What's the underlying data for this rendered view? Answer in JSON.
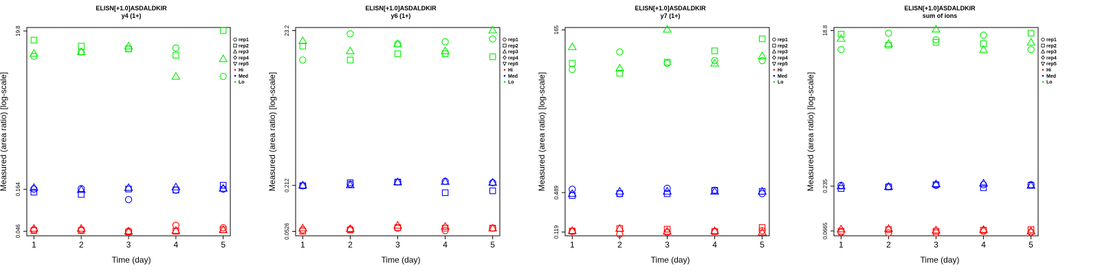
{
  "colors": {
    "Hi": "#ff0000",
    "Med": "#0000ff",
    "Lo": "#00ee00",
    "axis": "#000000"
  },
  "legend": {
    "reps": [
      "rep1",
      "rep2",
      "rep3",
      "rep4",
      "rep5"
    ],
    "groups": [
      "Hi",
      "Med",
      "Lo"
    ],
    "rep_markers": [
      "circle",
      "square",
      "triangle",
      "diamond",
      "triangle-down"
    ]
  },
  "chart_data": [
    {
      "type": "scatter",
      "title": "ELISN[+1.0]ASDALDKIR",
      "subtitle": "y4 (1+)",
      "xlabel": "Time (day)",
      "ylabel": "Measured (area ratio) [log-scale]",
      "x_ticks": [
        1,
        2,
        3,
        4,
        5
      ],
      "y_tick_labels": [
        "0.046",
        "0.164",
        "19.8"
      ],
      "y_scale": "log",
      "ylim": [
        0.04,
        22
      ],
      "xlim": [
        0.85,
        5.15
      ],
      "series": [
        {
          "group": "Lo",
          "rep": "rep1",
          "marker": "circle",
          "points": [
            [
              1,
              9.2
            ],
            [
              2,
              10.5
            ],
            [
              3,
              11.5
            ],
            [
              4,
              11.8
            ],
            [
              5,
              5.0
            ]
          ]
        },
        {
          "group": "Lo",
          "rep": "rep2",
          "marker": "square",
          "points": [
            [
              1,
              15.0
            ],
            [
              2,
              12.5
            ],
            [
              3,
              11.5
            ],
            [
              4,
              9.5
            ],
            [
              5,
              20.0
            ]
          ]
        },
        {
          "group": "Lo",
          "rep": "rep3",
          "marker": "triangle",
          "points": [
            [
              1,
              10.0
            ],
            [
              2,
              10.5
            ],
            [
              3,
              12.5
            ],
            [
              4,
              5.0
            ],
            [
              5,
              8.5
            ]
          ]
        },
        {
          "group": "Med",
          "rep": "rep1",
          "marker": "circle",
          "points": [
            [
              1,
              0.165
            ],
            [
              2,
              0.167
            ],
            [
              3,
              0.12
            ],
            [
              4,
              0.16
            ],
            [
              5,
              0.165
            ]
          ]
        },
        {
          "group": "Med",
          "rep": "rep2",
          "marker": "square",
          "points": [
            [
              1,
              0.15
            ],
            [
              2,
              0.14
            ],
            [
              3,
              0.165
            ],
            [
              4,
              0.16
            ],
            [
              5,
              0.185
            ]
          ]
        },
        {
          "group": "Med",
          "rep": "rep3",
          "marker": "triangle",
          "points": [
            [
              1,
              0.172
            ],
            [
              2,
              0.162
            ],
            [
              3,
              0.172
            ],
            [
              4,
              0.175
            ],
            [
              5,
              0.168
            ]
          ]
        },
        {
          "group": "Hi",
          "rep": "rep1",
          "marker": "circle",
          "points": [
            [
              1,
              0.048
            ],
            [
              2,
              0.048
            ],
            [
              3,
              0.046
            ],
            [
              4,
              0.055
            ],
            [
              5,
              0.051
            ]
          ]
        },
        {
          "group": "Hi",
          "rep": "rep2",
          "marker": "square",
          "points": [
            [
              1,
              0.047
            ],
            [
              2,
              0.047
            ],
            [
              3,
              0.045
            ],
            [
              4,
              0.046
            ],
            [
              5,
              0.048
            ]
          ]
        },
        {
          "group": "Hi",
          "rep": "rep3",
          "marker": "triangle",
          "points": [
            [
              1,
              0.05
            ],
            [
              2,
              0.05
            ],
            [
              3,
              0.046
            ],
            [
              4,
              0.047
            ],
            [
              5,
              0.048
            ]
          ]
        }
      ]
    },
    {
      "type": "scatter",
      "title": "ELISN[+1.0]ASDALDKIR",
      "subtitle": "y6 (1+)",
      "xlabel": "Time (day)",
      "ylabel": "Measured (area ratio) [log-scale]",
      "x_ticks": [
        1,
        2,
        3,
        4,
        5
      ],
      "y_tick_labels": [
        "0.0526",
        "0.212",
        "23.2"
      ],
      "y_scale": "log",
      "ylim": [
        0.046,
        25.5
      ],
      "xlim": [
        0.85,
        5.15
      ],
      "series": [
        {
          "group": "Lo",
          "rep": "rep1",
          "marker": "circle",
          "points": [
            [
              1,
              9.5
            ],
            [
              2,
              21.0
            ],
            [
              3,
              15.5
            ],
            [
              4,
              16.5
            ],
            [
              5,
              18.0
            ]
          ]
        },
        {
          "group": "Lo",
          "rep": "rep2",
          "marker": "square",
          "points": [
            [
              1,
              14.5
            ],
            [
              2,
              9.5
            ],
            [
              3,
              11.5
            ],
            [
              4,
              11.5
            ],
            [
              5,
              10.5
            ]
          ]
        },
        {
          "group": "Lo",
          "rep": "rep3",
          "marker": "triangle",
          "points": [
            [
              1,
              17.0
            ],
            [
              2,
              12.5
            ],
            [
              3,
              15.5
            ],
            [
              4,
              12.5
            ],
            [
              5,
              23.5
            ]
          ]
        },
        {
          "group": "Med",
          "rep": "rep1",
          "marker": "circle",
          "points": [
            [
              1,
              0.21
            ],
            [
              2,
              0.22
            ],
            [
              3,
              0.235
            ],
            [
              4,
              0.24
            ],
            [
              5,
              0.23
            ]
          ]
        },
        {
          "group": "Med",
          "rep": "rep2",
          "marker": "square",
          "points": [
            [
              1,
              0.21
            ],
            [
              2,
              0.23
            ],
            [
              3,
              0.235
            ],
            [
              4,
              0.17
            ],
            [
              5,
              0.18
            ]
          ]
        },
        {
          "group": "Med",
          "rep": "rep3",
          "marker": "triangle",
          "points": [
            [
              1,
              0.213
            ],
            [
              2,
              0.215
            ],
            [
              3,
              0.235
            ],
            [
              4,
              0.238
            ],
            [
              5,
              0.232
            ]
          ]
        },
        {
          "group": "Hi",
          "rep": "rep1",
          "marker": "circle",
          "points": [
            [
              1,
              0.055
            ],
            [
              2,
              0.056
            ],
            [
              3,
              0.058
            ],
            [
              4,
              0.054
            ],
            [
              5,
              0.058
            ]
          ]
        },
        {
          "group": "Hi",
          "rep": "rep2",
          "marker": "square",
          "points": [
            [
              1,
              0.053
            ],
            [
              2,
              0.055
            ],
            [
              3,
              0.059
            ],
            [
              4,
              0.058
            ],
            [
              5,
              0.058
            ]
          ]
        },
        {
          "group": "Hi",
          "rep": "rep3",
          "marker": "triangle",
          "points": [
            [
              1,
              0.058
            ],
            [
              2,
              0.057
            ],
            [
              3,
              0.063
            ],
            [
              4,
              0.061
            ],
            [
              5,
              0.058
            ]
          ]
        }
      ]
    },
    {
      "type": "scatter",
      "title": "ELISN[+1.0]ASDALDKIR",
      "subtitle": "y7 (1+)",
      "xlabel": "Time (day)",
      "ylabel": "Measured (area ratio) [log-scale]",
      "x_ticks": [
        1,
        2,
        3,
        4,
        5
      ],
      "y_tick_labels": [
        "0.119",
        "0.489",
        "165"
      ],
      "y_scale": "log",
      "ylim": [
        0.104,
        180
      ],
      "xlim": [
        0.85,
        5.15
      ],
      "series": [
        {
          "group": "Lo",
          "rep": "rep1",
          "marker": "circle",
          "points": [
            [
              1,
              40.0
            ],
            [
              2,
              75.0
            ],
            [
              3,
              50.0
            ],
            [
              4,
              55.0
            ],
            [
              5,
              55.0
            ]
          ]
        },
        {
          "group": "Lo",
          "rep": "rep2",
          "marker": "square",
          "points": [
            [
              1,
              50.0
            ],
            [
              2,
              35.0
            ],
            [
              3,
              52.0
            ],
            [
              4,
              78.0
            ],
            [
              5,
              120.0
            ]
          ]
        },
        {
          "group": "Lo",
          "rep": "rep3",
          "marker": "triangle",
          "points": [
            [
              1,
              90.0
            ],
            [
              2,
              42.0
            ],
            [
              3,
              168.0
            ],
            [
              4,
              50.0
            ],
            [
              5,
              65.0
            ]
          ]
        },
        {
          "group": "Med",
          "rep": "rep1",
          "marker": "circle",
          "points": [
            [
              1,
              0.55
            ],
            [
              2,
              0.47
            ],
            [
              3,
              0.57
            ],
            [
              4,
              0.53
            ],
            [
              5,
              0.47
            ]
          ]
        },
        {
          "group": "Med",
          "rep": "rep2",
          "marker": "square",
          "points": [
            [
              1,
              0.44
            ],
            [
              2,
              0.47
            ],
            [
              3,
              0.47
            ],
            [
              4,
              0.53
            ],
            [
              5,
              0.51
            ]
          ]
        },
        {
          "group": "Med",
          "rep": "rep3",
          "marker": "triangle",
          "points": [
            [
              1,
              0.47
            ],
            [
              2,
              0.51
            ],
            [
              3,
              0.51
            ],
            [
              4,
              0.51
            ],
            [
              5,
              0.51
            ]
          ]
        },
        {
          "group": "Hi",
          "rep": "rep1",
          "marker": "circle",
          "points": [
            [
              1,
              0.122
            ],
            [
              2,
              0.11
            ],
            [
              3,
              0.118
            ],
            [
              4,
              0.122
            ],
            [
              5,
              0.125
            ]
          ]
        },
        {
          "group": "Hi",
          "rep": "rep2",
          "marker": "square",
          "points": [
            [
              1,
              0.123
            ],
            [
              2,
              0.135
            ],
            [
              3,
              0.132
            ],
            [
              4,
              0.121
            ],
            [
              5,
              0.14
            ]
          ]
        },
        {
          "group": "Hi",
          "rep": "rep3",
          "marker": "triangle",
          "points": [
            [
              1,
              0.125
            ],
            [
              2,
              0.135
            ],
            [
              3,
              0.122
            ],
            [
              4,
              0.124
            ],
            [
              5,
              0.118
            ]
          ]
        }
      ]
    },
    {
      "type": "scatter",
      "title": "ELISN[+1.0]ASDALDKIR",
      "subtitle": "sum of ions",
      "xlabel": "Time (day)",
      "ylabel": "Measured (area ratio) [log-scale]",
      "x_ticks": [
        1,
        2,
        3,
        4,
        5
      ],
      "y_tick_labels": [
        "0.0665",
        "0.235",
        "18.8"
      ],
      "y_scale": "log",
      "ylim": [
        0.058,
        20.5
      ],
      "xlim": [
        0.85,
        5.15
      ],
      "series": [
        {
          "group": "Lo",
          "rep": "rep1",
          "marker": "circle",
          "points": [
            [
              1,
              11.0
            ],
            [
              2,
              17.5
            ],
            [
              3,
              14.5
            ],
            [
              4,
              16.5
            ],
            [
              5,
              11.0
            ]
          ]
        },
        {
          "group": "Lo",
          "rep": "rep2",
          "marker": "square",
          "points": [
            [
              1,
              17.0
            ],
            [
              2,
              12.5
            ],
            [
              3,
              13.5
            ],
            [
              4,
              13.0
            ],
            [
              5,
              17.5
            ]
          ]
        },
        {
          "group": "Lo",
          "rep": "rep3",
          "marker": "triangle",
          "points": [
            [
              1,
              15.0
            ],
            [
              2,
              13.0
            ],
            [
              3,
              19.5
            ],
            [
              4,
              11.0
            ],
            [
              5,
              13.5
            ]
          ]
        },
        {
          "group": "Med",
          "rep": "rep1",
          "marker": "circle",
          "points": [
            [
              1,
              0.24
            ],
            [
              2,
              0.232
            ],
            [
              3,
              0.24
            ],
            [
              4,
              0.245
            ],
            [
              5,
              0.245
            ]
          ]
        },
        {
          "group": "Med",
          "rep": "rep2",
          "marker": "square",
          "points": [
            [
              1,
              0.22
            ],
            [
              2,
              0.23
            ],
            [
              3,
              0.245
            ],
            [
              4,
              0.225
            ],
            [
              5,
              0.24
            ]
          ]
        },
        {
          "group": "Med",
          "rep": "rep3",
          "marker": "triangle",
          "points": [
            [
              1,
              0.235
            ],
            [
              2,
              0.232
            ],
            [
              3,
              0.25
            ],
            [
              4,
              0.255
            ],
            [
              5,
              0.24
            ]
          ]
        },
        {
          "group": "Hi",
          "rep": "rep1",
          "marker": "circle",
          "points": [
            [
              1,
              0.064
            ],
            [
              2,
              0.063
            ],
            [
              3,
              0.063
            ],
            [
              4,
              0.066
            ],
            [
              5,
              0.064
            ]
          ]
        },
        {
          "group": "Hi",
          "rep": "rep2",
          "marker": "square",
          "points": [
            [
              1,
              0.066
            ],
            [
              2,
              0.069
            ],
            [
              3,
              0.066
            ],
            [
              4,
              0.068
            ],
            [
              5,
              0.069
            ]
          ]
        },
        {
          "group": "Hi",
          "rep": "rep3",
          "marker": "triangle",
          "points": [
            [
              1,
              0.07
            ],
            [
              2,
              0.071
            ],
            [
              3,
              0.068
            ],
            [
              4,
              0.069
            ],
            [
              5,
              0.066
            ]
          ]
        }
      ]
    }
  ]
}
